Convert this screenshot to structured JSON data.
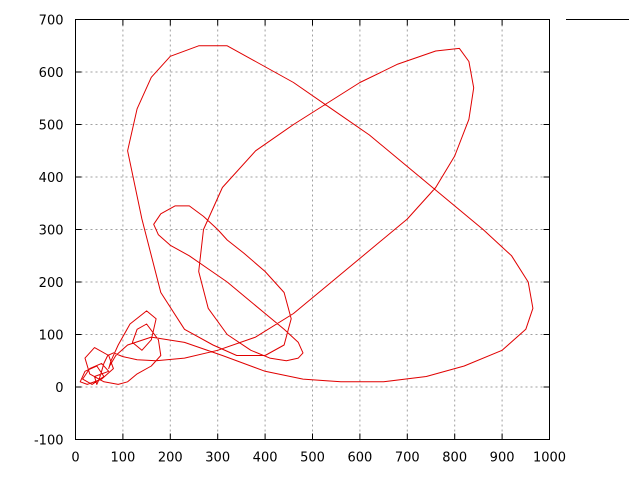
{
  "chart_data": {
    "type": "line",
    "title": "",
    "xlabel": "",
    "ylabel": "",
    "xlim": [
      0,
      1000
    ],
    "ylim": [
      -100,
      700
    ],
    "xticks": [
      0,
      100,
      200,
      300,
      400,
      500,
      600,
      700,
      800,
      900,
      1000
    ],
    "yticks": [
      -100,
      0,
      100,
      200,
      300,
      400,
      500,
      600,
      700
    ],
    "grid": true,
    "legend": "top-right",
    "series": [
      {
        "color": "#e00000",
        "x": [
          40,
          70,
          55,
          30,
          15,
          35,
          60,
          45,
          20,
          10,
          25,
          55,
          80,
          70,
          40,
          20,
          30,
          60,
          90,
          110,
          130,
          160,
          180,
          175,
          150,
          130,
          120,
          140,
          160,
          170,
          150,
          115,
          90,
          75,
          70,
          72,
          85,
          110,
          160,
          230,
          310,
          400,
          480,
          560,
          650,
          740,
          820,
          900,
          950,
          965,
          955,
          920,
          860,
          780,
          700,
          620,
          540,
          460,
          380,
          320,
          260,
          200,
          160,
          130,
          110,
          140,
          180,
          230,
          290,
          340,
          400,
          440,
          455,
          440,
          400,
          355,
          320,
          300,
          270,
          240,
          210,
          180,
          165,
          175,
          200,
          240,
          280,
          320,
          360,
          400,
          440,
          470,
          480,
          470,
          445,
          410,
          370,
          320,
          280,
          260,
          270,
          310,
          380,
          460,
          530,
          600,
          680,
          760,
          810,
          830,
          840,
          830,
          800,
          760,
          700,
          620,
          540,
          460,
          380,
          300,
          230,
          170,
          130,
          100,
          80,
          68,
          60,
          55,
          50,
          45,
          40
        ],
        "y": [
          20,
          30,
          45,
          35,
          15,
          5,
          20,
          40,
          30,
          10,
          5,
          15,
          35,
          60,
          75,
          55,
          25,
          10,
          5,
          10,
          25,
          40,
          60,
          90,
          120,
          110,
          85,
          70,
          90,
          130,
          145,
          120,
          80,
          50,
          35,
          40,
          60,
          80,
          95,
          85,
          60,
          30,
          15,
          10,
          10,
          20,
          40,
          70,
          110,
          150,
          200,
          250,
          300,
          360,
          420,
          480,
          530,
          580,
          620,
          650,
          650,
          630,
          590,
          530,
          450,
          320,
          180,
          110,
          80,
          60,
          60,
          80,
          130,
          180,
          220,
          255,
          280,
          300,
          325,
          345,
          345,
          330,
          310,
          290,
          270,
          250,
          225,
          200,
          170,
          140,
          110,
          85,
          65,
          55,
          50,
          55,
          70,
          100,
          150,
          220,
          300,
          380,
          450,
          500,
          540,
          580,
          615,
          640,
          645,
          620,
          570,
          510,
          440,
          380,
          320,
          260,
          200,
          140,
          95,
          70,
          55,
          50,
          52,
          58,
          65,
          60,
          45,
          30,
          15,
          5,
          20
        ]
      }
    ]
  }
}
